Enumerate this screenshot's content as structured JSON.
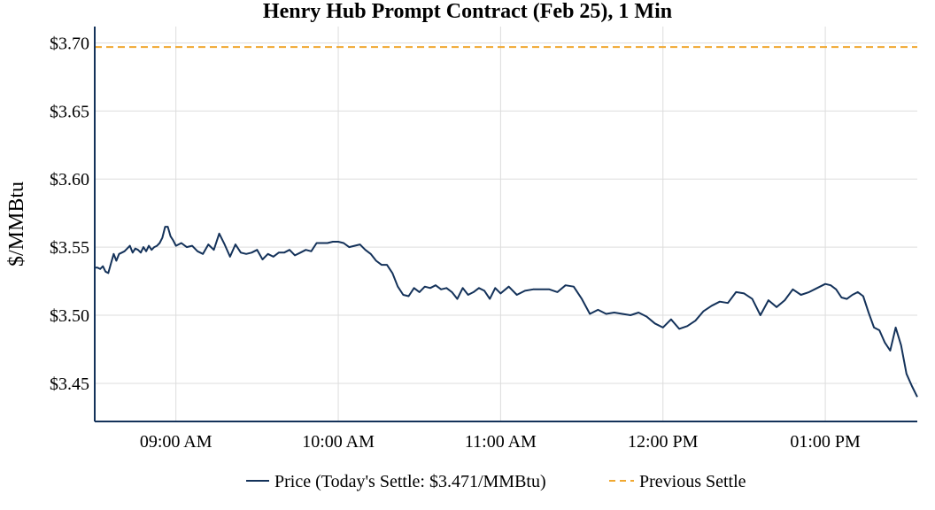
{
  "chart_data": {
    "type": "line",
    "title": "Henry Hub Prompt Contract (Feb 25), 1 Min",
    "xlabel": "",
    "ylabel": "$/MMBtu",
    "ylim": [
      3.422,
      3.712
    ],
    "xlim": [
      "08:30",
      "13:34"
    ],
    "grid": true,
    "legend_position": "bottom",
    "x_ticks": [
      "09:00 AM",
      "10:00 AM",
      "11:00 AM",
      "12:00 PM",
      "01:00 PM"
    ],
    "y_ticks": [
      "$3.45",
      "$3.50",
      "$3.55",
      "$3.60",
      "$3.65",
      "$3.70"
    ],
    "colors": {
      "price": "#14325a",
      "previous_settle": "#f0a830",
      "axis": "#14325a",
      "grid": "#dddddd"
    },
    "series": [
      {
        "name": "Price (Today's Settle: $3.471/MMBtu)",
        "style": "solid",
        "x": [
          "08:30",
          "08:31",
          "08:32",
          "08:33",
          "08:34",
          "08:35",
          "08:36",
          "08:37",
          "08:38",
          "08:39",
          "08:40",
          "08:41",
          "08:42",
          "08:43",
          "08:44",
          "08:45",
          "08:46",
          "08:47",
          "08:48",
          "08:49",
          "08:50",
          "08:51",
          "08:52",
          "08:53",
          "08:54",
          "08:55",
          "08:56",
          "08:57",
          "08:58",
          "08:59",
          "09:00",
          "09:02",
          "09:04",
          "09:06",
          "09:08",
          "09:10",
          "09:12",
          "09:14",
          "09:16",
          "09:18",
          "09:20",
          "09:22",
          "09:24",
          "09:26",
          "09:28",
          "09:30",
          "09:32",
          "09:34",
          "09:36",
          "09:38",
          "09:40",
          "09:42",
          "09:44",
          "09:46",
          "09:48",
          "09:50",
          "09:52",
          "09:54",
          "09:56",
          "09:58",
          "10:00",
          "10:02",
          "10:04",
          "10:06",
          "10:08",
          "10:10",
          "10:12",
          "10:14",
          "10:16",
          "10:18",
          "10:20",
          "10:22",
          "10:24",
          "10:26",
          "10:28",
          "10:30",
          "10:32",
          "10:34",
          "10:36",
          "10:38",
          "10:40",
          "10:42",
          "10:44",
          "10:46",
          "10:48",
          "10:50",
          "10:52",
          "10:54",
          "10:56",
          "10:58",
          "11:00",
          "11:03",
          "11:06",
          "11:09",
          "11:12",
          "11:15",
          "11:18",
          "11:21",
          "11:24",
          "11:27",
          "11:30",
          "11:33",
          "11:36",
          "11:39",
          "11:42",
          "11:45",
          "11:48",
          "11:51",
          "11:54",
          "11:57",
          "12:00",
          "12:03",
          "12:06",
          "12:09",
          "12:12",
          "12:15",
          "12:18",
          "12:21",
          "12:24",
          "12:27",
          "12:30",
          "12:33",
          "12:36",
          "12:39",
          "12:42",
          "12:45",
          "12:48",
          "12:51",
          "12:54",
          "12:57",
          "13:00",
          "13:02",
          "13:04",
          "13:06",
          "13:08",
          "13:10",
          "13:12",
          "13:14",
          "13:16",
          "13:18",
          "13:20",
          "13:22",
          "13:24",
          "13:26",
          "13:28",
          "13:30",
          "13:32",
          "13:34"
        ],
        "values": [
          3.535,
          3.535,
          3.534,
          3.536,
          3.532,
          3.531,
          3.538,
          3.545,
          3.54,
          3.545,
          3.546,
          3.547,
          3.549,
          3.551,
          3.546,
          3.549,
          3.548,
          3.546,
          3.55,
          3.547,
          3.551,
          3.548,
          3.55,
          3.551,
          3.553,
          3.557,
          3.565,
          3.565,
          3.558,
          3.555,
          3.551,
          3.553,
          3.55,
          3.551,
          3.547,
          3.545,
          3.552,
          3.548,
          3.56,
          3.552,
          3.543,
          3.552,
          3.546,
          3.545,
          3.546,
          3.548,
          3.541,
          3.545,
          3.543,
          3.546,
          3.546,
          3.548,
          3.544,
          3.546,
          3.548,
          3.547,
          3.553,
          3.553,
          3.553,
          3.554,
          3.554,
          3.553,
          3.55,
          3.551,
          3.552,
          3.548,
          3.545,
          3.54,
          3.537,
          3.537,
          3.531,
          3.521,
          3.515,
          3.514,
          3.52,
          3.517,
          3.521,
          3.52,
          3.522,
          3.519,
          3.52,
          3.517,
          3.512,
          3.52,
          3.515,
          3.517,
          3.52,
          3.518,
          3.512,
          3.52,
          3.516,
          3.521,
          3.515,
          3.518,
          3.519,
          3.519,
          3.519,
          3.517,
          3.522,
          3.521,
          3.512,
          3.501,
          3.504,
          3.501,
          3.502,
          3.501,
          3.5,
          3.502,
          3.499,
          3.494,
          3.491,
          3.497,
          3.49,
          3.492,
          3.496,
          3.503,
          3.507,
          3.51,
          3.509,
          3.517,
          3.516,
          3.512,
          3.5,
          3.511,
          3.506,
          3.511,
          3.519,
          3.515,
          3.517,
          3.52,
          3.523,
          3.522,
          3.519,
          3.513,
          3.512,
          3.515,
          3.517,
          3.514,
          3.502,
          3.491,
          3.489,
          3.48,
          3.474,
          3.491,
          3.478,
          3.457,
          3.448,
          3.44
        ]
      },
      {
        "name": "Previous Settle",
        "style": "dashed",
        "constant": 3.697
      }
    ]
  }
}
